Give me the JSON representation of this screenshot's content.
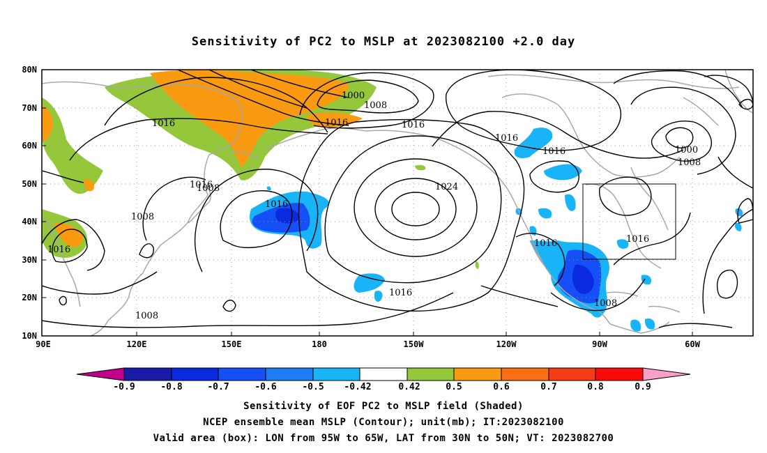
{
  "title": "Sensitivity of PC2 to MSLP at 2023082100 +2.0 day",
  "map": {
    "lon_labels": [
      "90E",
      "120E",
      "150E",
      "180",
      "150W",
      "120W",
      "90W",
      "60W"
    ],
    "lat_labels": [
      "80N",
      "70N",
      "60N",
      "50N",
      "40N",
      "30N",
      "20N",
      "10N"
    ],
    "contour_labels": [
      "1000",
      "1008",
      "1016",
      "1016",
      "1016",
      "1016",
      "1008",
      "1008",
      "1016",
      "1016",
      "1024",
      "1016",
      "1016",
      "1016",
      "1000",
      "1008",
      "1016",
      "1016",
      "1008",
      "1008"
    ],
    "valid_box": {
      "lon": [
        "95W",
        "65W"
      ],
      "lat": [
        "30N",
        "50N"
      ]
    }
  },
  "colorbar": {
    "labels": [
      "-0.9",
      "-0.8",
      "-0.7",
      "-0.6",
      "-0.5",
      "-0.42",
      "0.42",
      "0.5",
      "0.6",
      "0.7",
      "0.8",
      "0.9"
    ],
    "colors": [
      "#c0008c",
      "#1a1aa8",
      "#0a2ae0",
      "#1450f5",
      "#1e7cf5",
      "#18b4f8",
      "#ffffff",
      "#94c83a",
      "#fa9a10",
      "#fa6e14",
      "#f53c14",
      "#fa0a0a",
      "#f8a0c8"
    ]
  },
  "captions": {
    "line1": "Sensitivity of EOF PC2 to MSLP field (Shaded)",
    "line2": "NCEP ensemble mean MSLP (Contour); unit(mb); IT:2023082100",
    "line3": "Valid area (box): LON from 95W to 65W, LAT from 30N to 50N; VT: 2023082700"
  }
}
